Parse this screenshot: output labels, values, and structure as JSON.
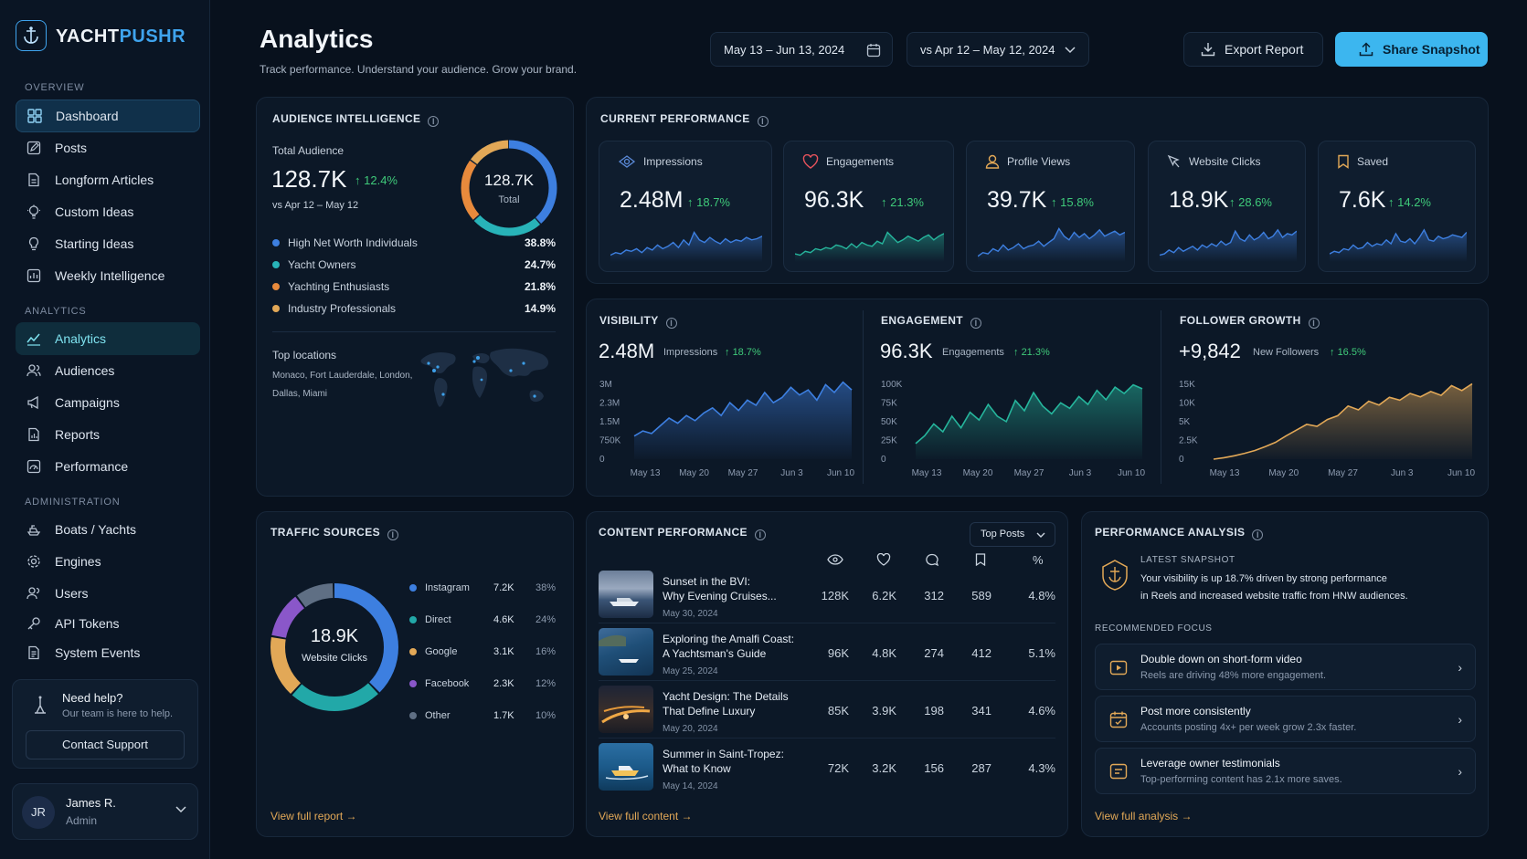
{
  "brand": {
    "name_a": "YACHT",
    "name_b": "PUSHR"
  },
  "sidebar": {
    "overview_label": "OVERVIEW",
    "overview_items": [
      {
        "label": "Dashboard",
        "icon": "grid-icon"
      },
      {
        "label": "Posts",
        "icon": "edit-icon"
      },
      {
        "label": "Longform Articles",
        "icon": "document-icon"
      },
      {
        "label": "Custom Ideas",
        "icon": "lightbulb-icon"
      },
      {
        "label": "Starting Ideas",
        "icon": "bulb-icon"
      },
      {
        "label": "Weekly Intelligence",
        "icon": "chart-box-icon"
      }
    ],
    "analytics_label": "ANALYTICS",
    "analytics_items": [
      {
        "label": "Analytics",
        "icon": "trend-icon"
      },
      {
        "label": "Audiences",
        "icon": "users-icon"
      },
      {
        "label": "Campaigns",
        "icon": "megaphone-icon"
      },
      {
        "label": "Reports",
        "icon": "report-icon"
      },
      {
        "label": "Performance",
        "icon": "gauge-icon"
      }
    ],
    "admin_label": "ADMINISTRATION",
    "admin_items": [
      {
        "label": "Boats / Yachts",
        "icon": "boat-icon"
      },
      {
        "label": "Engines",
        "icon": "gear-icon"
      },
      {
        "label": "Users",
        "icon": "users-icon"
      },
      {
        "label": "API Tokens",
        "icon": "key-icon"
      },
      {
        "label": "System Events",
        "icon": "list-icon"
      }
    ],
    "help": {
      "title": "Need help?",
      "subtitle": "Our team is here to help.",
      "button": "Contact Support"
    },
    "user": {
      "initials": "JR",
      "name": "James R.",
      "role": "Admin"
    }
  },
  "header": {
    "title": "Analytics",
    "subtitle": "Track performance. Understand your audience. Grow your brand.",
    "date_range": "May 13 – Jun 13, 2024",
    "compare_range": "vs Apr 12 – May 12, 2024",
    "export_label": "Export Report",
    "share_label": "Share Snapshot"
  },
  "audience": {
    "title": "AUDIENCE INTELLIGENCE",
    "total_label": "Total Audience",
    "total_value": "128.7K",
    "change": "12.4%",
    "compare": "vs Apr 12 – May 12",
    "donut_value": "128.7K",
    "donut_label": "Total",
    "segments": [
      {
        "label": "High Net Worth Individuals",
        "value": "38.8%",
        "color": "#3d7fe0",
        "pct": 38.8
      },
      {
        "label": "Yacht Owners",
        "value": "24.7%",
        "color": "#28b3b8",
        "pct": 24.7
      },
      {
        "label": "Yachting Enthusiasts",
        "value": "21.8%",
        "color": "#e88a3c",
        "pct": 21.8
      },
      {
        "label": "Industry Professionals",
        "value": "14.9%",
        "color": "#e2a857",
        "pct": 14.9
      }
    ],
    "locations_label": "Top locations",
    "locations_line1": "Monaco, Fort Lauderdale, London,",
    "locations_line2": "Dallas, Miami"
  },
  "current": {
    "title": "CURRENT PERFORMANCE",
    "metrics": [
      {
        "label": "Impressions",
        "value": "2.48M",
        "change": "18.7%",
        "icon": "eye-icon",
        "color": "#3d7fe0"
      },
      {
        "label": "Engagements",
        "value": "96.3K",
        "change": "21.3%",
        "icon": "heart-icon",
        "color": "#26b59c"
      },
      {
        "label": "Profile Views",
        "value": "39.7K",
        "change": "15.8%",
        "icon": "user-icon",
        "color": "#3d7fe0"
      },
      {
        "label": "Website Clicks",
        "value": "18.9K",
        "change": "28.6%",
        "icon": "cursor-icon",
        "color": "#3d7fe0"
      },
      {
        "label": "Saved",
        "value": "7.6K",
        "change": "14.2%",
        "icon": "bookmark-icon",
        "color": "#3d7fe0"
      }
    ]
  },
  "charts": {
    "visibility": {
      "title": "VISIBILITY",
      "value": "2.48M",
      "label": "Impressions",
      "change": "18.7%"
    },
    "engagement": {
      "title": "ENGAGEMENT",
      "value": "96.3K",
      "label": "Engagements",
      "change": "21.3%"
    },
    "growth": {
      "title": "FOLLOWER GROWTH",
      "value": "+9,842",
      "label": "New Followers",
      "change": "16.5%"
    }
  },
  "chart_data": [
    {
      "type": "area",
      "series": [
        {
          "values": [
            0.9,
            1.1,
            1.0,
            1.3,
            1.6,
            1.4,
            1.7,
            1.5,
            1.8,
            2.0,
            1.7,
            2.2,
            1.9,
            2.3,
            2.1,
            2.6,
            2.2,
            2.4,
            2.8,
            2.5,
            2.7,
            2.3,
            2.9,
            2.6,
            3.0,
            2.7
          ]
        }
      ],
      "x_ticks": [
        "May 13",
        "May 20",
        "May 27",
        "Jun 3",
        "Jun 10"
      ],
      "y_ticks": [
        "0",
        "750K",
        "1.5M",
        "2.3M",
        "3M"
      ],
      "ylim": [
        0,
        3.2
      ],
      "color": "#3d7fe0"
    },
    {
      "type": "area",
      "series": [
        {
          "values": [
            20,
            30,
            45,
            35,
            55,
            40,
            60,
            50,
            70,
            55,
            48,
            75,
            62,
            85,
            68,
            58,
            72,
            65,
            80,
            70,
            88,
            76,
            92,
            84,
            95,
            90
          ]
        }
      ],
      "x_ticks": [
        "May 13",
        "May 20",
        "May 27",
        "Jun 3",
        "Jun 10"
      ],
      "y_ticks": [
        "0",
        "25K",
        "50K",
        "75K",
        "100K"
      ],
      "ylim": [
        0,
        105
      ],
      "color": "#26b59c"
    },
    {
      "type": "area",
      "series": [
        {
          "values": [
            0,
            300,
            700,
            1200,
            1800,
            2600,
            3500,
            4800,
            6000,
            7200,
            6800,
            8200,
            9000,
            11000,
            10200,
            12000,
            11200,
            12800,
            12200,
            13600,
            12900,
            14000,
            13200,
            15200,
            14200,
            15600
          ]
        }
      ],
      "x_ticks": [
        "May 13",
        "May 20",
        "May 27",
        "Jun 3",
        "Jun 10"
      ],
      "y_ticks": [
        "0",
        "5K",
        "10K",
        "15K"
      ],
      "y_tick_top": "15K",
      "ylim": [
        0,
        17000
      ],
      "extra_tick": "2.5K",
      "color": "#e2a857"
    }
  ],
  "traffic": {
    "title": "TRAFFIC SOURCES",
    "center_value": "18.9K",
    "center_label": "Website Clicks",
    "sources": [
      {
        "label": "Instagram",
        "value": "7.2K",
        "pct": "38%",
        "color": "#3d7fe0",
        "share": 38
      },
      {
        "label": "Direct",
        "value": "4.6K",
        "pct": "24%",
        "color": "#22a8a8",
        "share": 24
      },
      {
        "label": "Google",
        "value": "3.1K",
        "pct": "16%",
        "color": "#e2a857",
        "share": 16
      },
      {
        "label": "Facebook",
        "value": "2.3K",
        "pct": "12%",
        "color": "#8a57c9",
        "share": 12
      },
      {
        "label": "Other",
        "value": "1.7K",
        "pct": "10%",
        "color": "#5f6f84",
        "share": 10
      }
    ],
    "link": "View full report"
  },
  "content": {
    "title": "CONTENT PERFORMANCE",
    "filter": "Top Posts",
    "percent_header": "%",
    "rows": [
      {
        "title1": "Sunset in the BVI:",
        "title2": "Why Evening Cruises...",
        "date": "May 30, 2024",
        "views": "128K",
        "likes": "6.2K",
        "comments": "312",
        "saves": "589",
        "rate": "4.8%"
      },
      {
        "title1": "Exploring the Amalfi Coast:",
        "title2": "A Yachtsman's Guide",
        "date": "May 25, 2024",
        "views": "96K",
        "likes": "4.8K",
        "comments": "274",
        "saves": "412",
        "rate": "5.1%"
      },
      {
        "title1": "Yacht Design: The Details",
        "title2": "That Define Luxury",
        "date": "May 20, 2024",
        "views": "85K",
        "likes": "3.9K",
        "comments": "198",
        "saves": "341",
        "rate": "4.6%"
      },
      {
        "title1": "Summer in Saint-Tropez:",
        "title2": "What to Know",
        "date": "May 14, 2024",
        "views": "72K",
        "likes": "3.2K",
        "comments": "156",
        "saves": "287",
        "rate": "4.3%"
      }
    ],
    "link": "View full content"
  },
  "analysis": {
    "title": "PERFORMANCE ANALYSIS",
    "snapshot_label": "LATEST SNAPSHOT",
    "snapshot_line1": "Your visibility is up 18.7% driven by strong performance",
    "snapshot_line2": "in Reels and increased website traffic from HNW audiences.",
    "focus_label": "RECOMMENDED FOCUS",
    "items": [
      {
        "title": "Double down on short-form video",
        "subtitle": "Reels are driving 48% more engagement."
      },
      {
        "title": "Post more consistently",
        "subtitle": "Accounts posting 4x+ per week grow 2.3x faster."
      },
      {
        "title": "Leverage owner testimonials",
        "subtitle": "Top-performing content has 2.1x more saves."
      }
    ],
    "link": "View full analysis"
  }
}
